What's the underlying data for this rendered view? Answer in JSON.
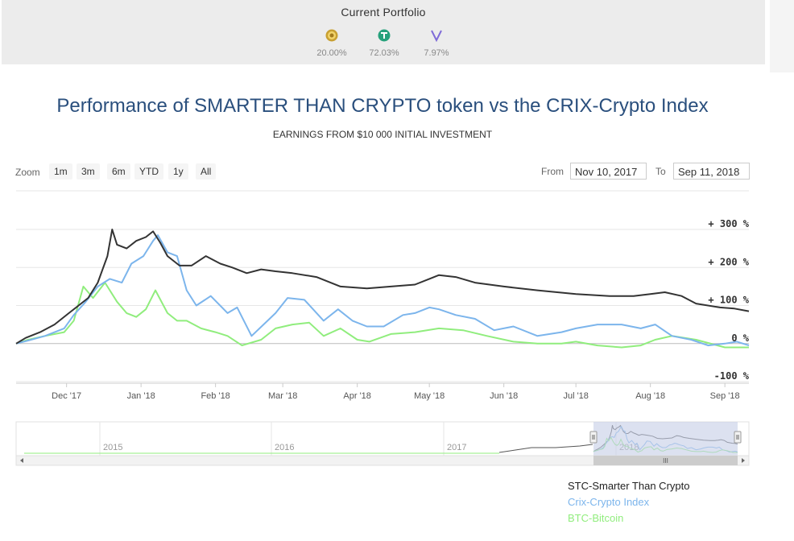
{
  "portfolio": {
    "title": "Current Portfolio",
    "coins": [
      {
        "icon": "stc-coin-icon",
        "color": "#c8a032",
        "pct": "20.00%"
      },
      {
        "icon": "tether-icon",
        "color": "#26a17b",
        "pct": "72.03%"
      },
      {
        "icon": "vechain-icon",
        "color": "#7f6bd8",
        "pct": "7.97%"
      }
    ]
  },
  "zoom": {
    "label": "Zoom",
    "buttons": [
      "1m",
      "3m",
      "6m",
      "YTD",
      "1y",
      "All"
    ]
  },
  "range": {
    "from_label": "From",
    "from_value": "Nov 10, 2017",
    "to_label": "To",
    "to_value": "Sep 11, 2018"
  },
  "navigator": {
    "year_labels": [
      "2015",
      "2016",
      "2017",
      "2018"
    ],
    "scroll_grip": "III"
  },
  "colors": {
    "stc": "#333333",
    "crix": "#7cb5ec",
    "btc": "#90ed7d",
    "title": "#2a4f7d",
    "navigator_mask": "#c5cde6"
  },
  "chart_data": {
    "type": "line",
    "title": "Performance of SMARTER THAN CRYPTO token vs the CRIX-Crypto Index",
    "subtitle": "EARNINGS FROM $10 000 INITIAL INVESTMENT",
    "xlabel": "",
    "ylabel": "",
    "x_tick_labels": [
      "Dec '17",
      "Jan '18",
      "Feb '18",
      "Mar '18",
      "Apr '18",
      "May '18",
      "Jun '18",
      "Jul '18",
      "Aug '18",
      "Sep '18"
    ],
    "y_tick_labels": [
      "+ 300 %",
      "+ 200 %",
      "+ 100 %",
      "0 %",
      "-100 %"
    ],
    "y_ticks": [
      300,
      200,
      100,
      0,
      -100
    ],
    "xlim": [
      "2017-11-10",
      "2018-09-11"
    ],
    "ylim": [
      -110,
      310
    ],
    "grid": true,
    "legend_position": "bottom-right",
    "series": [
      {
        "name": "STC-Smarter Than Crypto",
        "key": "stc",
        "x": [
          "2017-11-10",
          "2017-11-14",
          "2017-11-20",
          "2017-11-26",
          "2017-12-02",
          "2017-12-06",
          "2017-12-10",
          "2017-12-14",
          "2017-12-18",
          "2017-12-20",
          "2017-12-22",
          "2017-12-26",
          "2017-12-30",
          "2018-01-03",
          "2018-01-06",
          "2018-01-09",
          "2018-01-12",
          "2018-01-17",
          "2018-01-22",
          "2018-01-28",
          "2018-02-03",
          "2018-02-08",
          "2018-02-14",
          "2018-02-20",
          "2018-02-26",
          "2018-03-05",
          "2018-03-15",
          "2018-03-25",
          "2018-04-05",
          "2018-04-15",
          "2018-04-25",
          "2018-05-01",
          "2018-05-05",
          "2018-05-12",
          "2018-05-20",
          "2018-06-01",
          "2018-06-15",
          "2018-07-01",
          "2018-07-15",
          "2018-07-25",
          "2018-08-01",
          "2018-08-07",
          "2018-08-14",
          "2018-08-20",
          "2018-08-30",
          "2018-09-05",
          "2018-09-11"
        ],
        "y": [
          0,
          15,
          30,
          50,
          80,
          100,
          120,
          160,
          230,
          300,
          260,
          250,
          270,
          280,
          295,
          265,
          230,
          205,
          205,
          230,
          210,
          200,
          185,
          195,
          190,
          185,
          175,
          150,
          145,
          150,
          155,
          170,
          180,
          175,
          160,
          150,
          140,
          130,
          125,
          125,
          130,
          135,
          125,
          105,
          95,
          92,
          85
        ]
      },
      {
        "name": "Crix-Crypto Index",
        "key": "crix",
        "x": [
          "2017-11-10",
          "2017-11-15",
          "2017-11-22",
          "2017-11-30",
          "2017-12-04",
          "2017-12-09",
          "2017-12-14",
          "2017-12-19",
          "2017-12-24",
          "2017-12-28",
          "2018-01-02",
          "2018-01-06",
          "2018-01-08",
          "2018-01-12",
          "2018-01-16",
          "2018-01-20",
          "2018-01-24",
          "2018-01-30",
          "2018-02-06",
          "2018-02-10",
          "2018-02-16",
          "2018-02-21",
          "2018-02-26",
          "2018-03-03",
          "2018-03-10",
          "2018-03-18",
          "2018-03-24",
          "2018-03-30",
          "2018-04-05",
          "2018-04-12",
          "2018-04-20",
          "2018-04-25",
          "2018-05-01",
          "2018-05-05",
          "2018-05-12",
          "2018-05-20",
          "2018-05-28",
          "2018-06-05",
          "2018-06-15",
          "2018-06-25",
          "2018-07-01",
          "2018-07-10",
          "2018-07-20",
          "2018-07-28",
          "2018-08-03",
          "2018-08-10",
          "2018-08-18",
          "2018-08-25",
          "2018-09-01",
          "2018-09-06",
          "2018-09-11"
        ],
        "y": [
          0,
          8,
          20,
          40,
          75,
          110,
          150,
          170,
          160,
          210,
          230,
          270,
          285,
          240,
          230,
          140,
          100,
          125,
          80,
          95,
          20,
          50,
          80,
          120,
          115,
          60,
          90,
          60,
          45,
          45,
          75,
          80,
          95,
          90,
          75,
          65,
          35,
          45,
          20,
          30,
          40,
          50,
          50,
          40,
          50,
          20,
          10,
          -5,
          0,
          5,
          -5
        ]
      },
      {
        "name": "BTC-Bitcoin",
        "key": "btc",
        "x": [
          "2017-11-10",
          "2017-11-15",
          "2017-11-22",
          "2017-11-30",
          "2017-12-04",
          "2017-12-08",
          "2017-12-12",
          "2017-12-17",
          "2017-12-22",
          "2017-12-26",
          "2017-12-30",
          "2018-01-03",
          "2018-01-07",
          "2018-01-12",
          "2018-01-16",
          "2018-01-20",
          "2018-01-26",
          "2018-02-01",
          "2018-02-06",
          "2018-02-12",
          "2018-02-20",
          "2018-02-26",
          "2018-03-05",
          "2018-03-12",
          "2018-03-18",
          "2018-03-25",
          "2018-04-01",
          "2018-04-06",
          "2018-04-15",
          "2018-04-25",
          "2018-05-05",
          "2018-05-15",
          "2018-05-25",
          "2018-06-05",
          "2018-06-15",
          "2018-06-25",
          "2018-07-01",
          "2018-07-10",
          "2018-07-20",
          "2018-07-28",
          "2018-08-03",
          "2018-08-10",
          "2018-08-20",
          "2018-09-01",
          "2018-09-11"
        ],
        "y": [
          0,
          10,
          20,
          30,
          60,
          150,
          120,
          160,
          110,
          80,
          70,
          90,
          140,
          80,
          60,
          60,
          40,
          30,
          20,
          -5,
          10,
          40,
          50,
          55,
          20,
          40,
          10,
          5,
          25,
          30,
          40,
          35,
          20,
          5,
          0,
          0,
          5,
          -5,
          -10,
          -5,
          10,
          20,
          10,
          -10,
          -10
        ]
      }
    ]
  }
}
